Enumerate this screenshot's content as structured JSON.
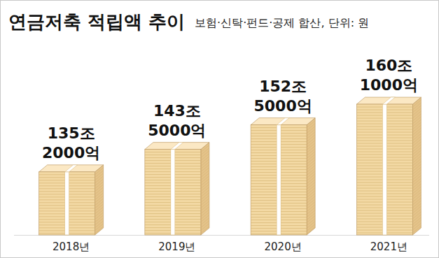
{
  "chart_data": {
    "type": "bar",
    "title": "연금저축 적립액 추이",
    "subtitle": "보험·신탁·펀드·공제 합산, 단위: 원",
    "categories": [
      "2018년",
      "2019년",
      "2020년",
      "2021년"
    ],
    "values": [
      135.2,
      143.5,
      152.5,
      160.1
    ],
    "value_labels": [
      "135조 2000억",
      "143조 5000억",
      "152조 5000억",
      "160조 1000억"
    ],
    "color": "#f3d9a4",
    "ylim": [
      112,
      165
    ],
    "yticks": [],
    "tick_labels": false,
    "grid": false,
    "data_labels": true
  }
}
